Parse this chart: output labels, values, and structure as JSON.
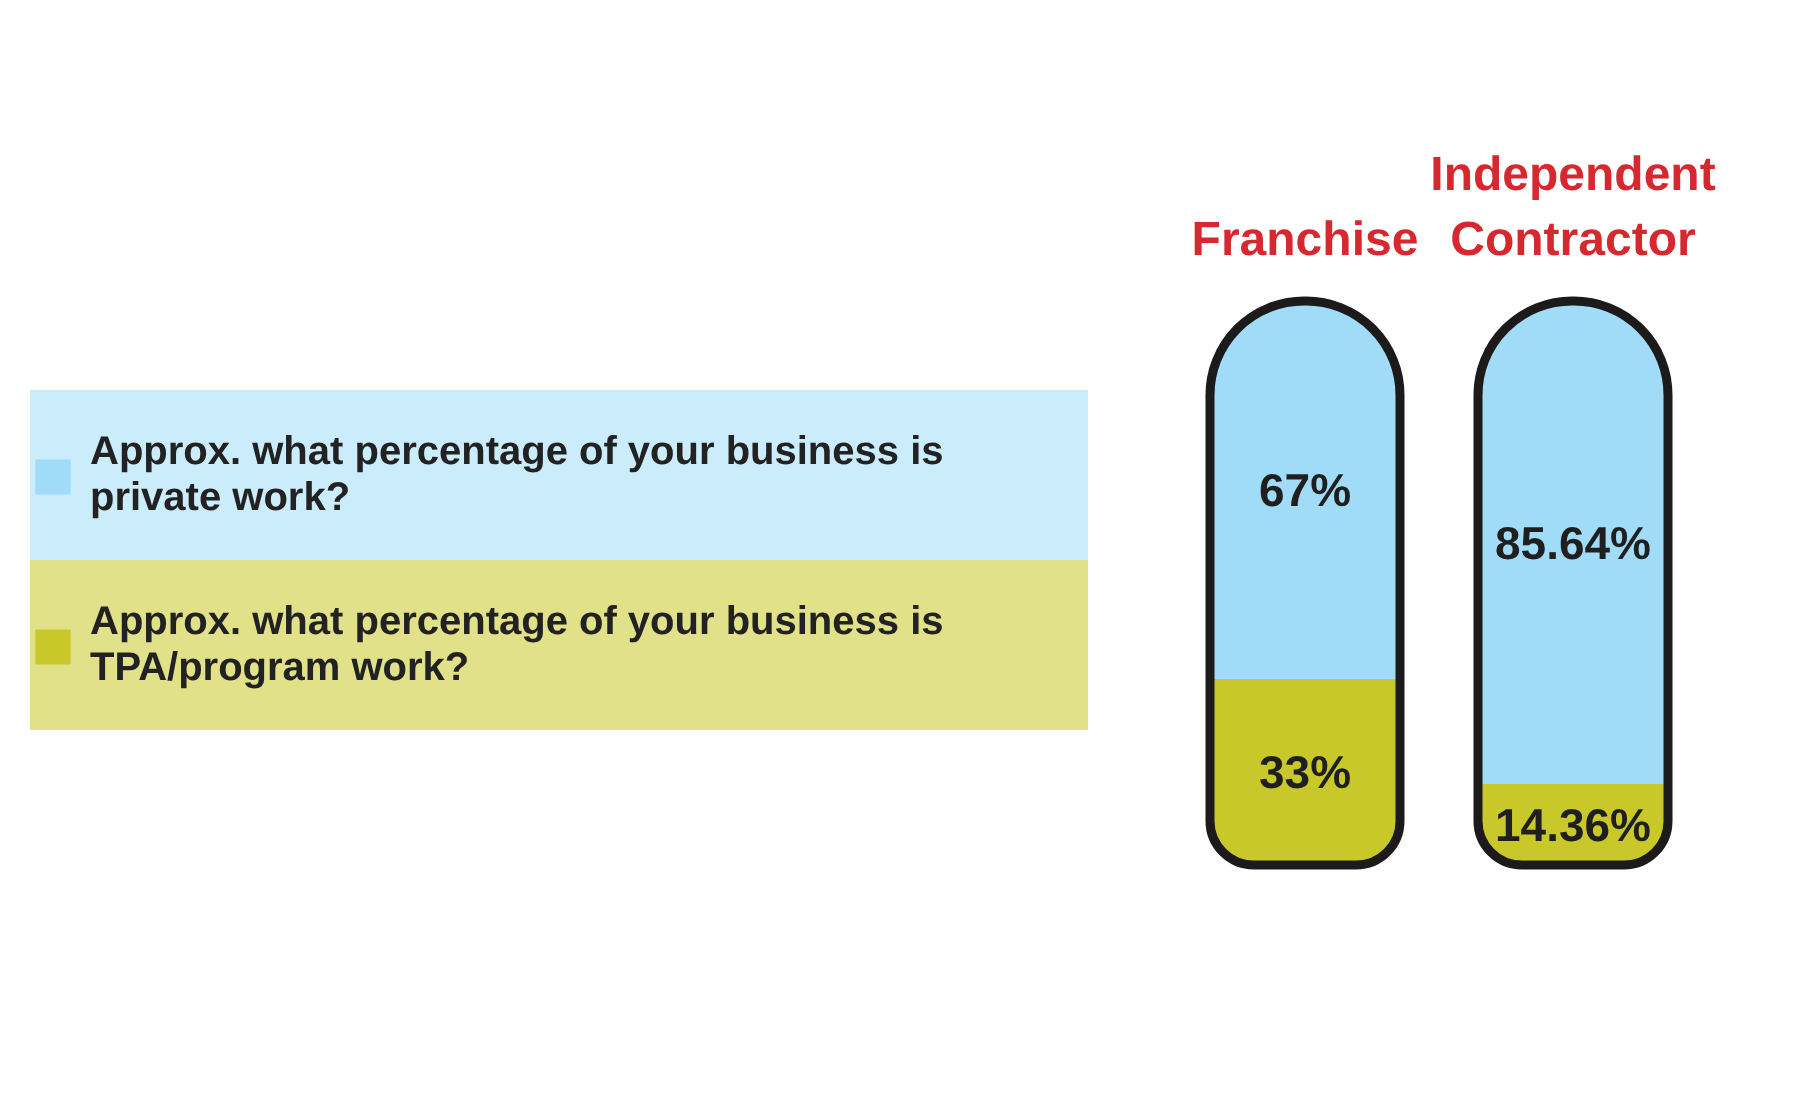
{
  "chart_data": {
    "type": "bar",
    "stacked": true,
    "categories": [
      "Franchise",
      "Independent Contractor"
    ],
    "series": [
      {
        "name": "Approx. what percentage of your business is TPA/program work?",
        "color": "#c8c82a",
        "values": [
          33,
          14.36
        ],
        "value_labels": [
          "33%",
          "14.36%"
        ]
      },
      {
        "name": "Approx. what percentage of your business is private work?",
        "color": "#a0dcf7",
        "values": [
          67,
          85.64
        ],
        "value_labels": [
          "67%",
          "85.64%"
        ]
      }
    ],
    "legend": "left",
    "tick_labels": "x"
  }
}
